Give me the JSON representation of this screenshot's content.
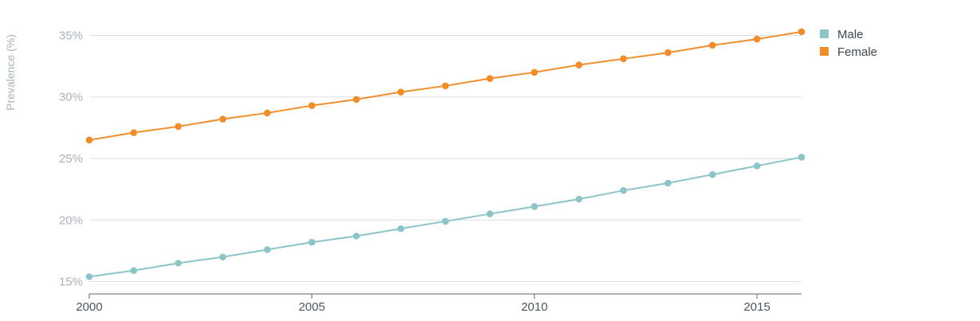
{
  "chart_data": {
    "type": "line",
    "title": "",
    "xlabel": "",
    "ylabel": "Prevalence (%)",
    "x": [
      2000,
      2001,
      2002,
      2003,
      2004,
      2005,
      2006,
      2007,
      2008,
      2009,
      2010,
      2011,
      2012,
      2013,
      2014,
      2015,
      2016
    ],
    "xlim": [
      2000,
      2016
    ],
    "ylim": [
      14,
      36
    ],
    "xticks": [
      2000,
      2005,
      2010,
      2015
    ],
    "xtick_labels": [
      "2000",
      "2005",
      "2010",
      "2015"
    ],
    "yticks": [
      15,
      20,
      25,
      30,
      35
    ],
    "ytick_labels": [
      "15%",
      "20%",
      "25%",
      "30%",
      "35%"
    ],
    "grid": true,
    "legend_position": "top-right",
    "series": [
      {
        "name": "Male",
        "color": "#8cc5c8",
        "values": [
          15.4,
          15.9,
          16.5,
          17.0,
          17.6,
          18.2,
          18.7,
          19.3,
          19.9,
          20.5,
          21.1,
          21.7,
          22.4,
          23.0,
          23.7,
          24.4,
          25.1
        ]
      },
      {
        "name": "Female",
        "color": "#f28c28",
        "values": [
          26.5,
          27.1,
          27.6,
          28.2,
          28.7,
          29.3,
          29.8,
          30.4,
          30.9,
          31.5,
          32.0,
          32.6,
          33.1,
          33.6,
          34.2,
          34.7,
          35.3
        ]
      }
    ]
  }
}
